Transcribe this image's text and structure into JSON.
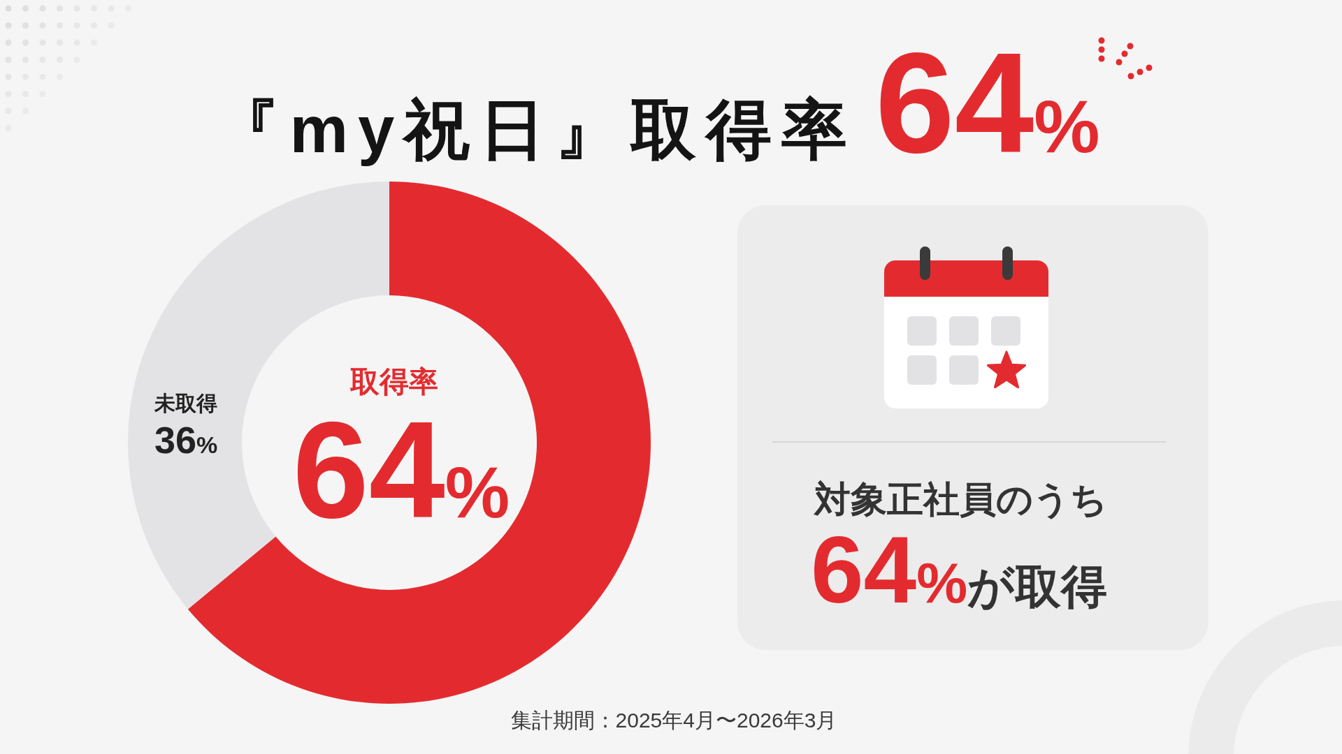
{
  "chart_data": [
    {
      "type": "donut",
      "title": "『my祝日』取得率64%",
      "categories": [
        "取得率",
        "未取得"
      ],
      "values": [
        64,
        36
      ],
      "colors": [
        "#e32b2f",
        "#e3e3e5"
      ],
      "value_labels": [
        "64%",
        "36%"
      ],
      "annotations": [
        "集計期間：2025年4月〜2026年3月"
      ]
    },
    {
      "type": "other",
      "annotations": [
        "対象正社員のうち",
        "64%が取得"
      ]
    }
  ]
}
